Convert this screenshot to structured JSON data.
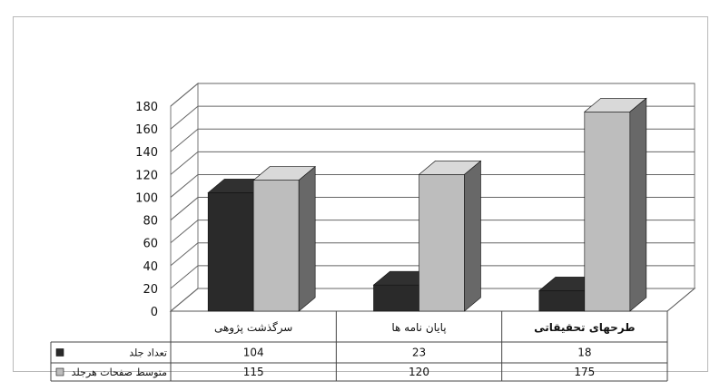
{
  "chart_data": {
    "type": "bar",
    "categories": [
      "سرگذشت پژوهی",
      "پایان نامه ها",
      "طرحهای تحقیقاتی"
    ],
    "series": [
      {
        "name": "تعداد جلد",
        "values": [
          104,
          23,
          18
        ],
        "color": "#2a2a2a"
      },
      {
        "name": "متوسط صفحات هرجلد",
        "values": [
          115,
          120,
          175
        ],
        "color": "#bdbdbd"
      }
    ],
    "yticks": [
      "0",
      "20",
      "40",
      "60",
      "80",
      "100",
      "120",
      "140",
      "160",
      "180"
    ],
    "ylim": [
      0,
      180
    ],
    "grid": true,
    "data_table": true,
    "style": "3d-column"
  }
}
